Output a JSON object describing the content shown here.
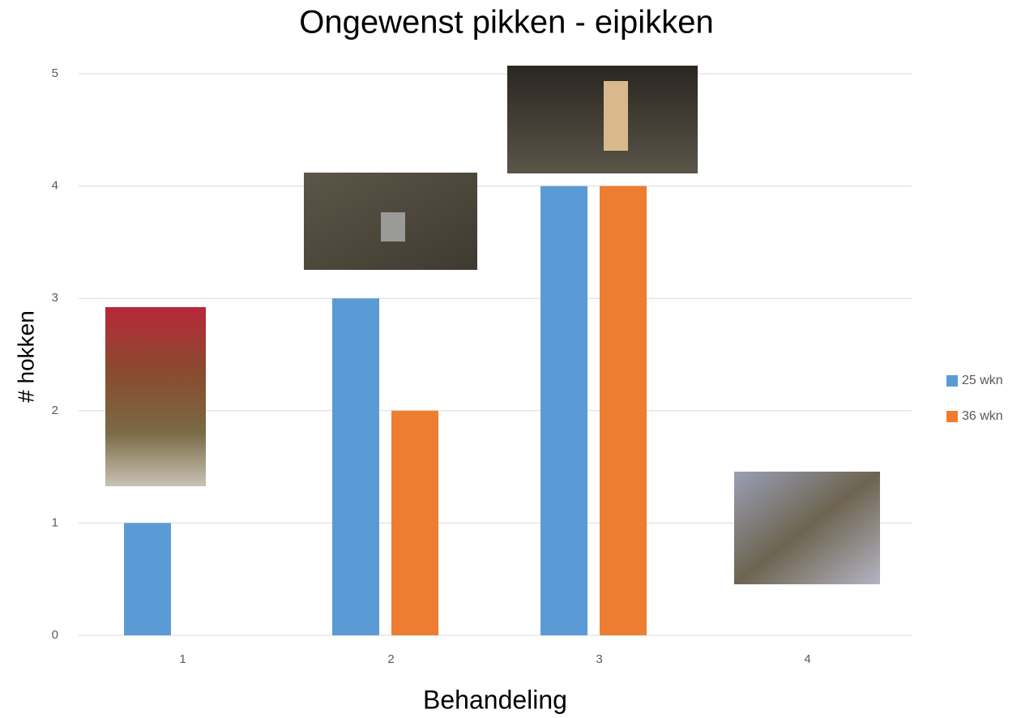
{
  "chart_data": {
    "type": "bar",
    "title": "Ongewenst pikken - eipikken",
    "x_label": "Behandeling",
    "y_label": "# hokken",
    "categories": [
      "1",
      "2",
      "3",
      "4"
    ],
    "series": [
      {
        "name": "25 wkn",
        "color": "#5b9bd5",
        "values": [
          1,
          3,
          4,
          0
        ]
      },
      {
        "name": "36 wkn",
        "color": "#ed7d31",
        "values": [
          0,
          2,
          4,
          0
        ]
      }
    ],
    "ylim": [
      0,
      5
    ],
    "yticks": [
      0,
      1,
      2,
      3,
      4,
      5
    ],
    "grid": true,
    "legend": "right"
  }
}
